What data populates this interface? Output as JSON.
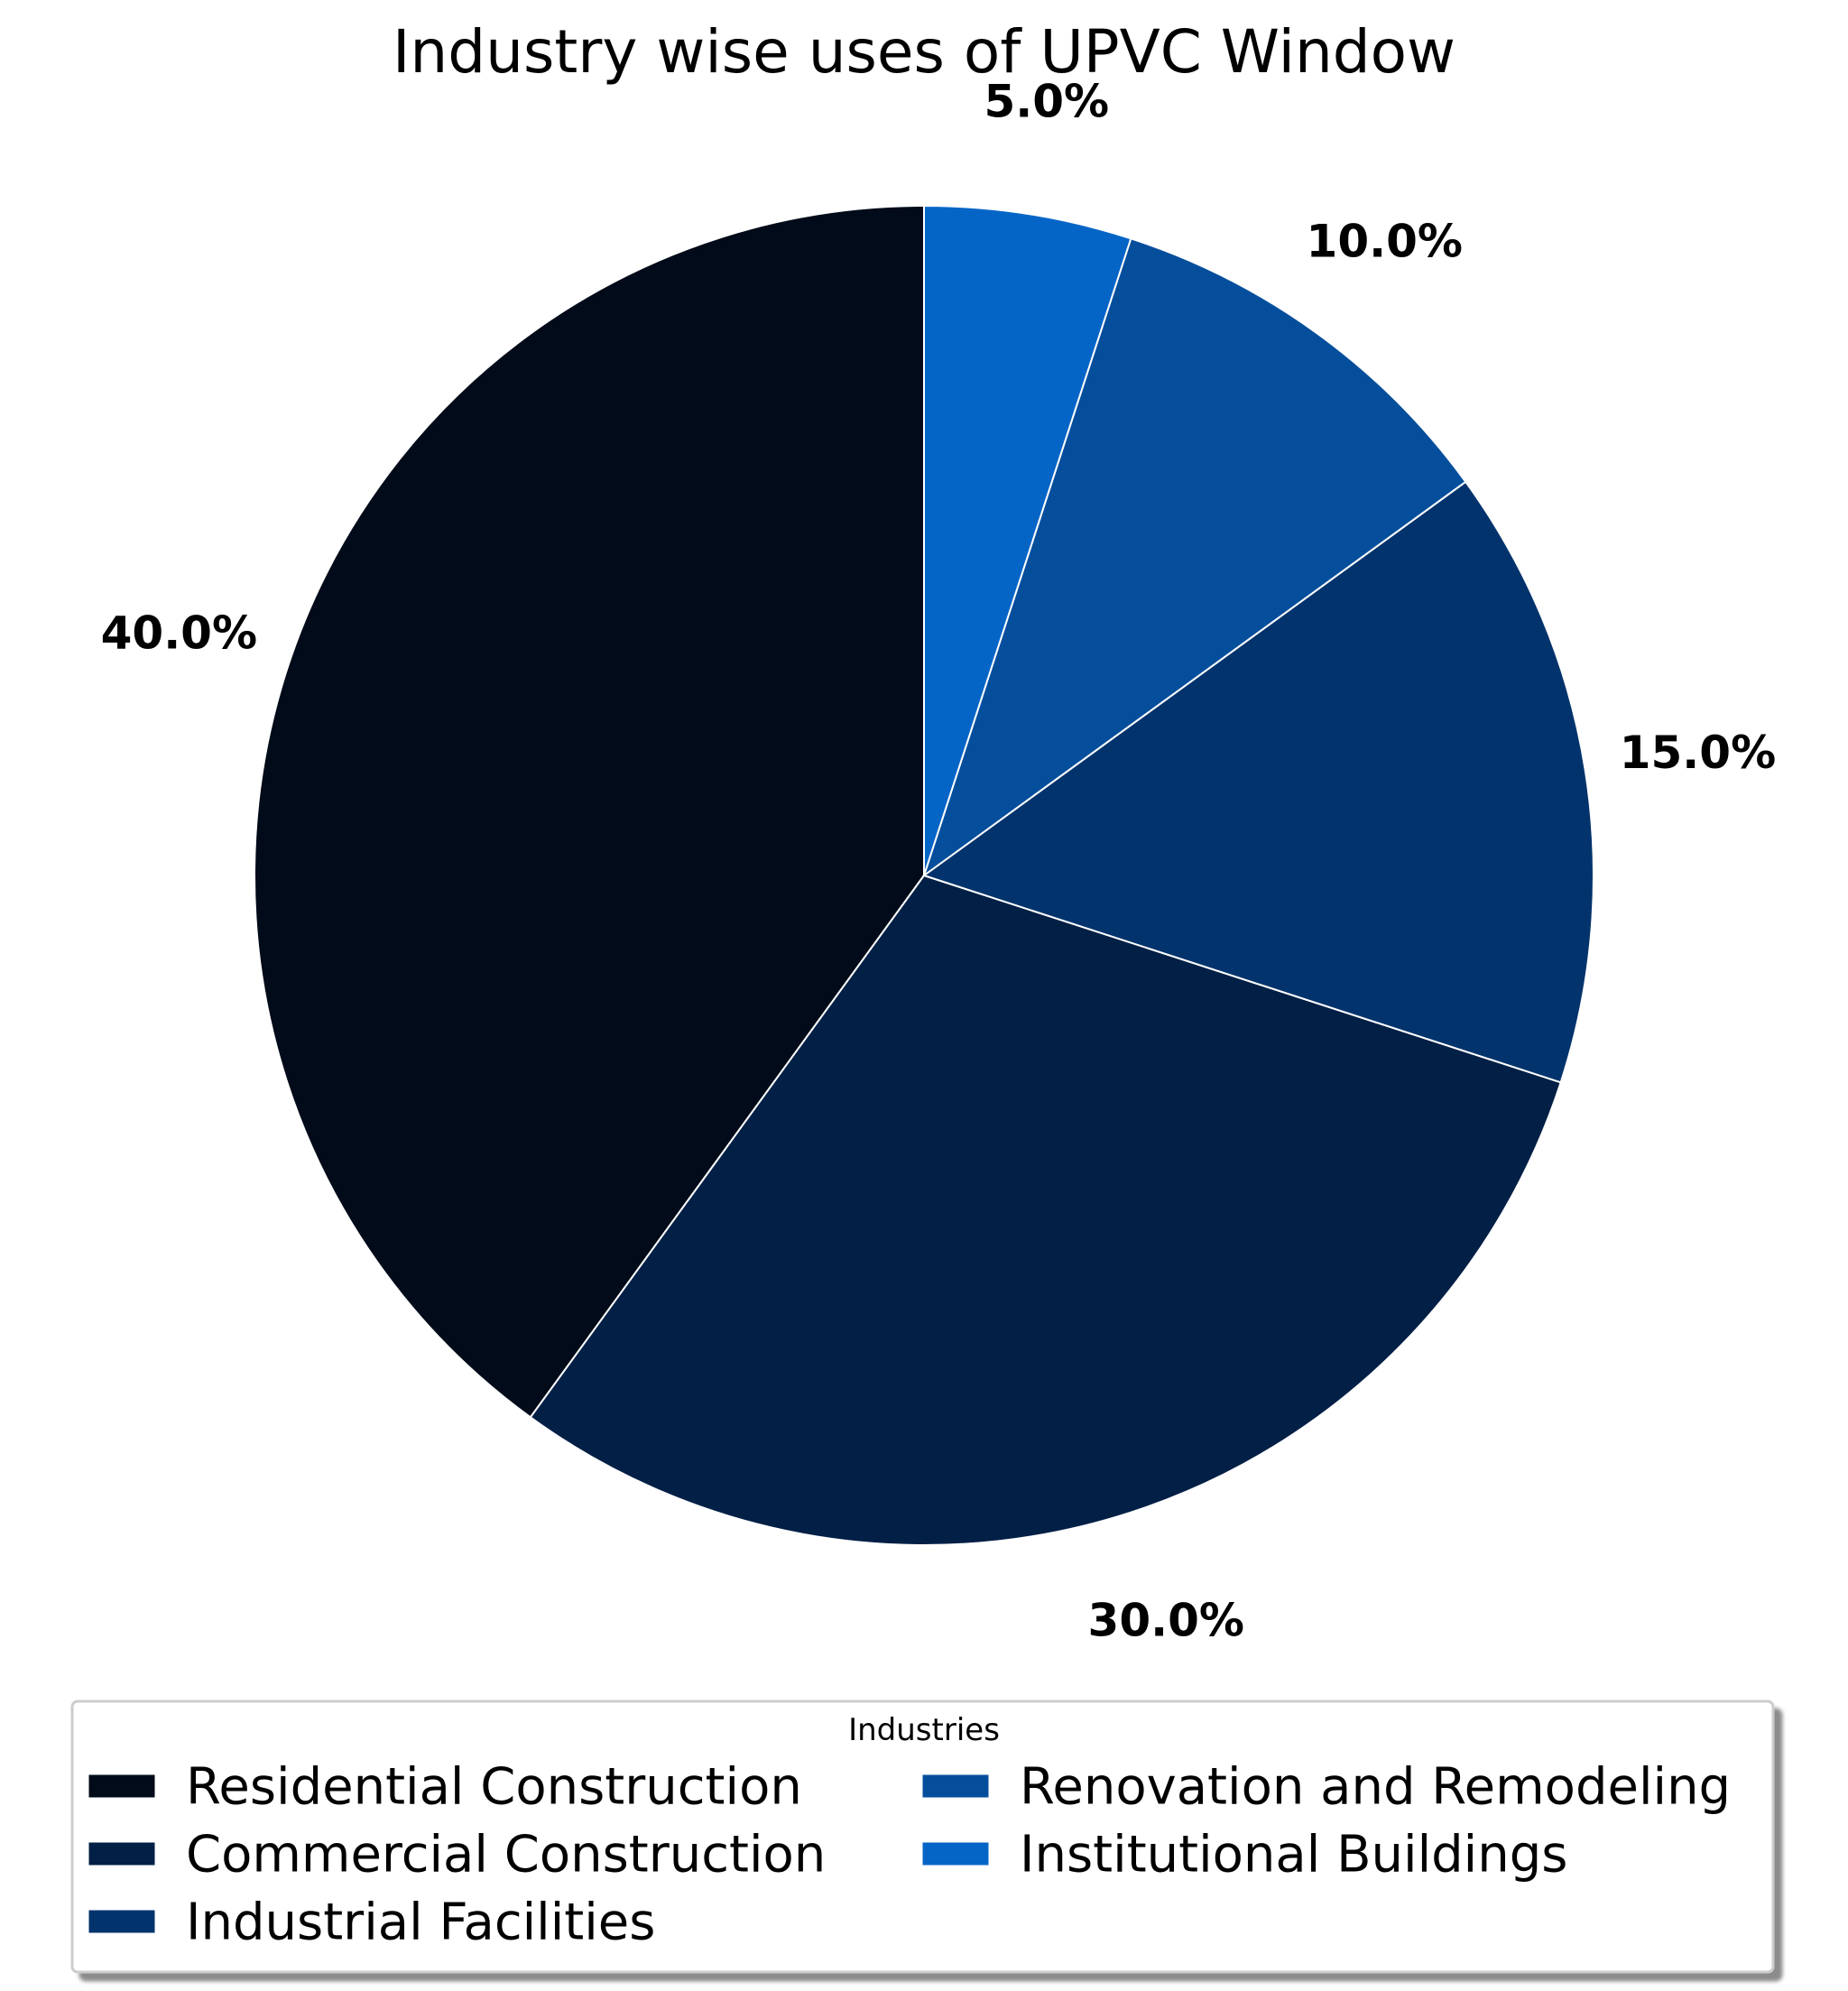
{
  "chart_data": {
    "type": "pie",
    "title": "Industry wise uses of UPVC Window",
    "categories": [
      "Residential Construction",
      "Commercial Construction",
      "Industrial Facilities",
      "Renovation and Remodeling",
      "Institutional Buildings"
    ],
    "values": [
      40,
      30,
      15,
      10,
      5
    ],
    "value_labels": [
      "40.0%",
      "30.0%",
      "15.0%",
      "10.0%",
      "5.0%"
    ],
    "colors": [
      "#020b19",
      "#021f46",
      "#03336c",
      "#054e9c",
      "#0565c7"
    ],
    "start_angle_deg": 90,
    "direction": "counterclockwise",
    "wedge_edge_color": "#ffffff",
    "legend": {
      "title": "Industries",
      "placement": "bottom-center",
      "columns": 2
    }
  }
}
